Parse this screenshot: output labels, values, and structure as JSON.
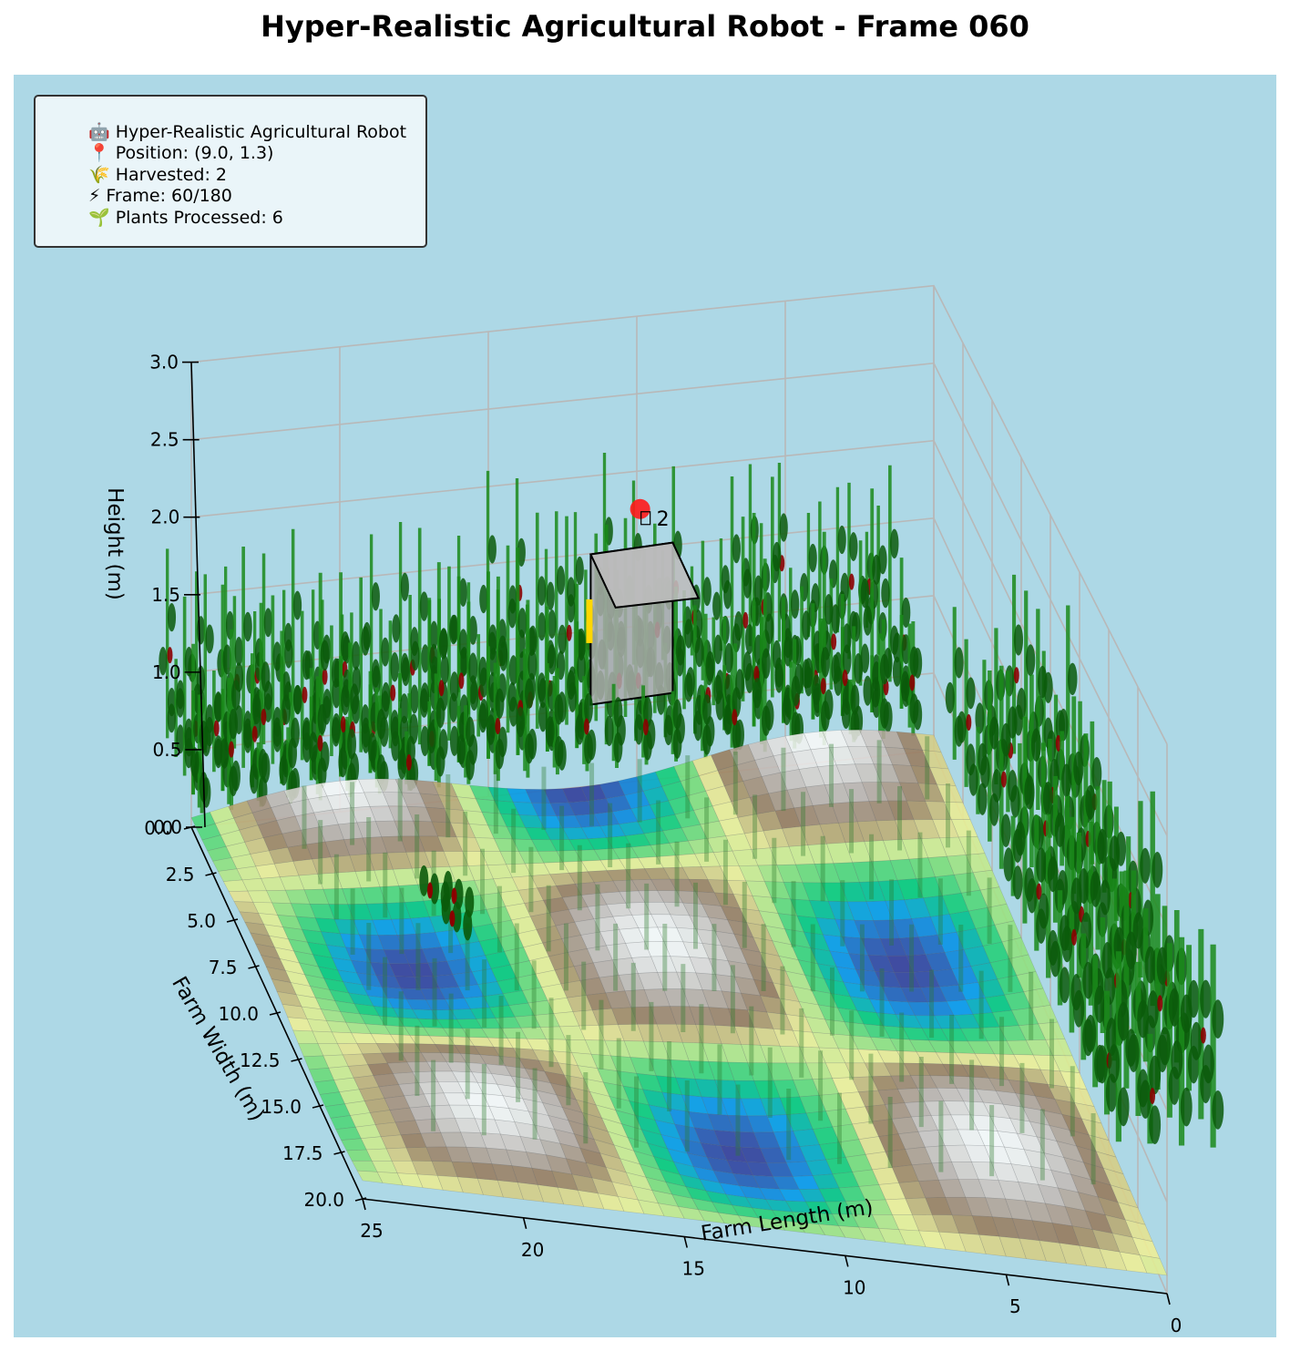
{
  "title": "Hyper-Realistic Agricultural Robot - Frame 060",
  "colors": {
    "background": "#add8e6",
    "info_box_bg": "#f2f8fa",
    "plant_stem": "#1a8a1a",
    "plant_leaf": "#0a5a0a",
    "fruit": "#8b0000",
    "robot_body": "#a9a9a9",
    "robot_marker": "#ff1a1a",
    "robot_side_light": "#ffd700"
  },
  "info_box": {
    "lines": [
      "🤖 Hyper-Realistic Agricultural Robot",
      "📍 Position: (9.0, 1.3)",
      "🌾 Harvested: 2",
      "⚡ Frame: 60/180",
      "🌱 Plants Processed: 6"
    ]
  },
  "chart_data": {
    "type": "surface",
    "title": "Hyper-Realistic Agricultural Robot - Frame 060",
    "xlabel": "Farm Length (m)",
    "ylabel": "Farm Width (m)",
    "zlabel": "Height (m)",
    "xlim": [
      0,
      25
    ],
    "ylim": [
      0,
      20
    ],
    "zlim": [
      0,
      3
    ],
    "x_ticks": [
      "0",
      "5",
      "10",
      "15",
      "20",
      "25"
    ],
    "y_ticks": [
      "0.0",
      "2.5",
      "5.0",
      "7.5",
      "10.0",
      "12.5",
      "15.0",
      "17.5",
      "20.0"
    ],
    "z_ticks": [
      "0.0",
      "0.5",
      "1.0",
      "1.5",
      "2.0",
      "2.5",
      "3.0"
    ],
    "grid": true,
    "colormap": "terrain",
    "terrain": {
      "description_function": "sin(x/4) * cos(y/4) pattern",
      "surface": "z = 0.1*sin(2*pi*x/16)*cos(2*pi*y/16)"
    },
    "robot": {
      "position": [
        9.0,
        1.3
      ],
      "harvested_label": "2"
    },
    "plant_rows": {
      "x_spacing": 1.0,
      "y_spacing": 1.0
    }
  }
}
